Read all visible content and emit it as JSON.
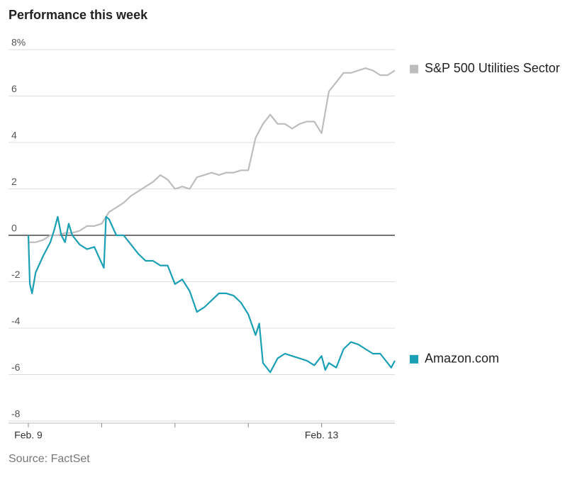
{
  "chart_data": {
    "type": "line",
    "title": "Performance this week",
    "source": "Source: FactSet",
    "ylim": [
      -8,
      8
    ],
    "yticks": [
      -8,
      -6,
      -4,
      -2,
      0,
      2,
      4,
      6,
      {
        "value": 8,
        "label": "8%"
      }
    ],
    "xlim": [
      0,
      5
    ],
    "xticks": [
      {
        "value": 0,
        "label": "Feb. 9"
      },
      {
        "value": 1,
        "label": null
      },
      {
        "value": 2,
        "label": null
      },
      {
        "value": 3,
        "label": null
      },
      {
        "value": 4,
        "label": "Feb. 13"
      }
    ],
    "grid": true,
    "series": [
      {
        "name": "S&P 500 Utilities Sector",
        "color": "#bdbdbd",
        "x": [
          0,
          0.1,
          0.2,
          0.3,
          0.4,
          0.5,
          0.6,
          0.7,
          0.8,
          0.9,
          1.0,
          1.1,
          1.2,
          1.3,
          1.4,
          1.5,
          1.6,
          1.7,
          1.8,
          1.9,
          2.0,
          2.1,
          2.2,
          2.3,
          2.4,
          2.5,
          2.6,
          2.7,
          2.8,
          2.9,
          3.0,
          3.1,
          3.2,
          3.3,
          3.4,
          3.5,
          3.6,
          3.7,
          3.8,
          3.9,
          4.0,
          4.1,
          4.2,
          4.3,
          4.4,
          4.5,
          4.6,
          4.7,
          4.8,
          4.9,
          5.0
        ],
        "values": [
          -0.3,
          -0.3,
          -0.2,
          0.0,
          0.0,
          0.1,
          0.1,
          0.2,
          0.4,
          0.4,
          0.5,
          1.0,
          1.2,
          1.4,
          1.7,
          1.9,
          2.1,
          2.3,
          2.6,
          2.4,
          2.0,
          2.1,
          2.0,
          2.5,
          2.6,
          2.7,
          2.6,
          2.7,
          2.7,
          2.8,
          2.8,
          4.2,
          4.8,
          5.2,
          4.8,
          4.8,
          4.6,
          4.8,
          4.9,
          4.9,
          4.4,
          6.2,
          6.6,
          7.0,
          7.0,
          7.1,
          7.2,
          7.1,
          6.9,
          6.9,
          7.1
        ]
      },
      {
        "name": "Amazon.com",
        "color": "#1a9fb4",
        "x": [
          0,
          0.02,
          0.05,
          0.1,
          0.2,
          0.3,
          0.35,
          0.4,
          0.45,
          0.5,
          0.55,
          0.6,
          0.7,
          0.8,
          0.9,
          1.0,
          1.03,
          1.06,
          1.1,
          1.2,
          1.3,
          1.4,
          1.5,
          1.6,
          1.7,
          1.8,
          1.9,
          2.0,
          2.1,
          2.2,
          2.3,
          2.4,
          2.5,
          2.6,
          2.7,
          2.8,
          2.9,
          3.0,
          3.1,
          3.15,
          3.2,
          3.3,
          3.4,
          3.5,
          3.6,
          3.7,
          3.8,
          3.9,
          4.0,
          4.05,
          4.1,
          4.2,
          4.3,
          4.4,
          4.5,
          4.6,
          4.7,
          4.8,
          4.9,
          4.95,
          5.0
        ],
        "values": [
          0.0,
          -2.1,
          -2.5,
          -1.6,
          -0.9,
          -0.3,
          0.2,
          0.8,
          0.0,
          -0.3,
          0.5,
          0.0,
          -0.4,
          -0.6,
          -0.5,
          -1.2,
          -1.4,
          0.8,
          0.7,
          0.0,
          0.0,
          -0.4,
          -0.8,
          -1.1,
          -1.1,
          -1.3,
          -1.3,
          -2.1,
          -1.9,
          -2.4,
          -3.3,
          -3.1,
          -2.8,
          -2.5,
          -2.5,
          -2.6,
          -2.9,
          -3.4,
          -4.3,
          -3.8,
          -5.5,
          -5.9,
          -5.3,
          -5.1,
          -5.2,
          -5.3,
          -5.4,
          -5.6,
          -5.2,
          -5.8,
          -5.5,
          -5.7,
          -4.9,
          -4.6,
          -4.7,
          -4.9,
          -5.1,
          -5.1,
          -5.5,
          -5.7,
          -5.4
        ]
      }
    ]
  }
}
